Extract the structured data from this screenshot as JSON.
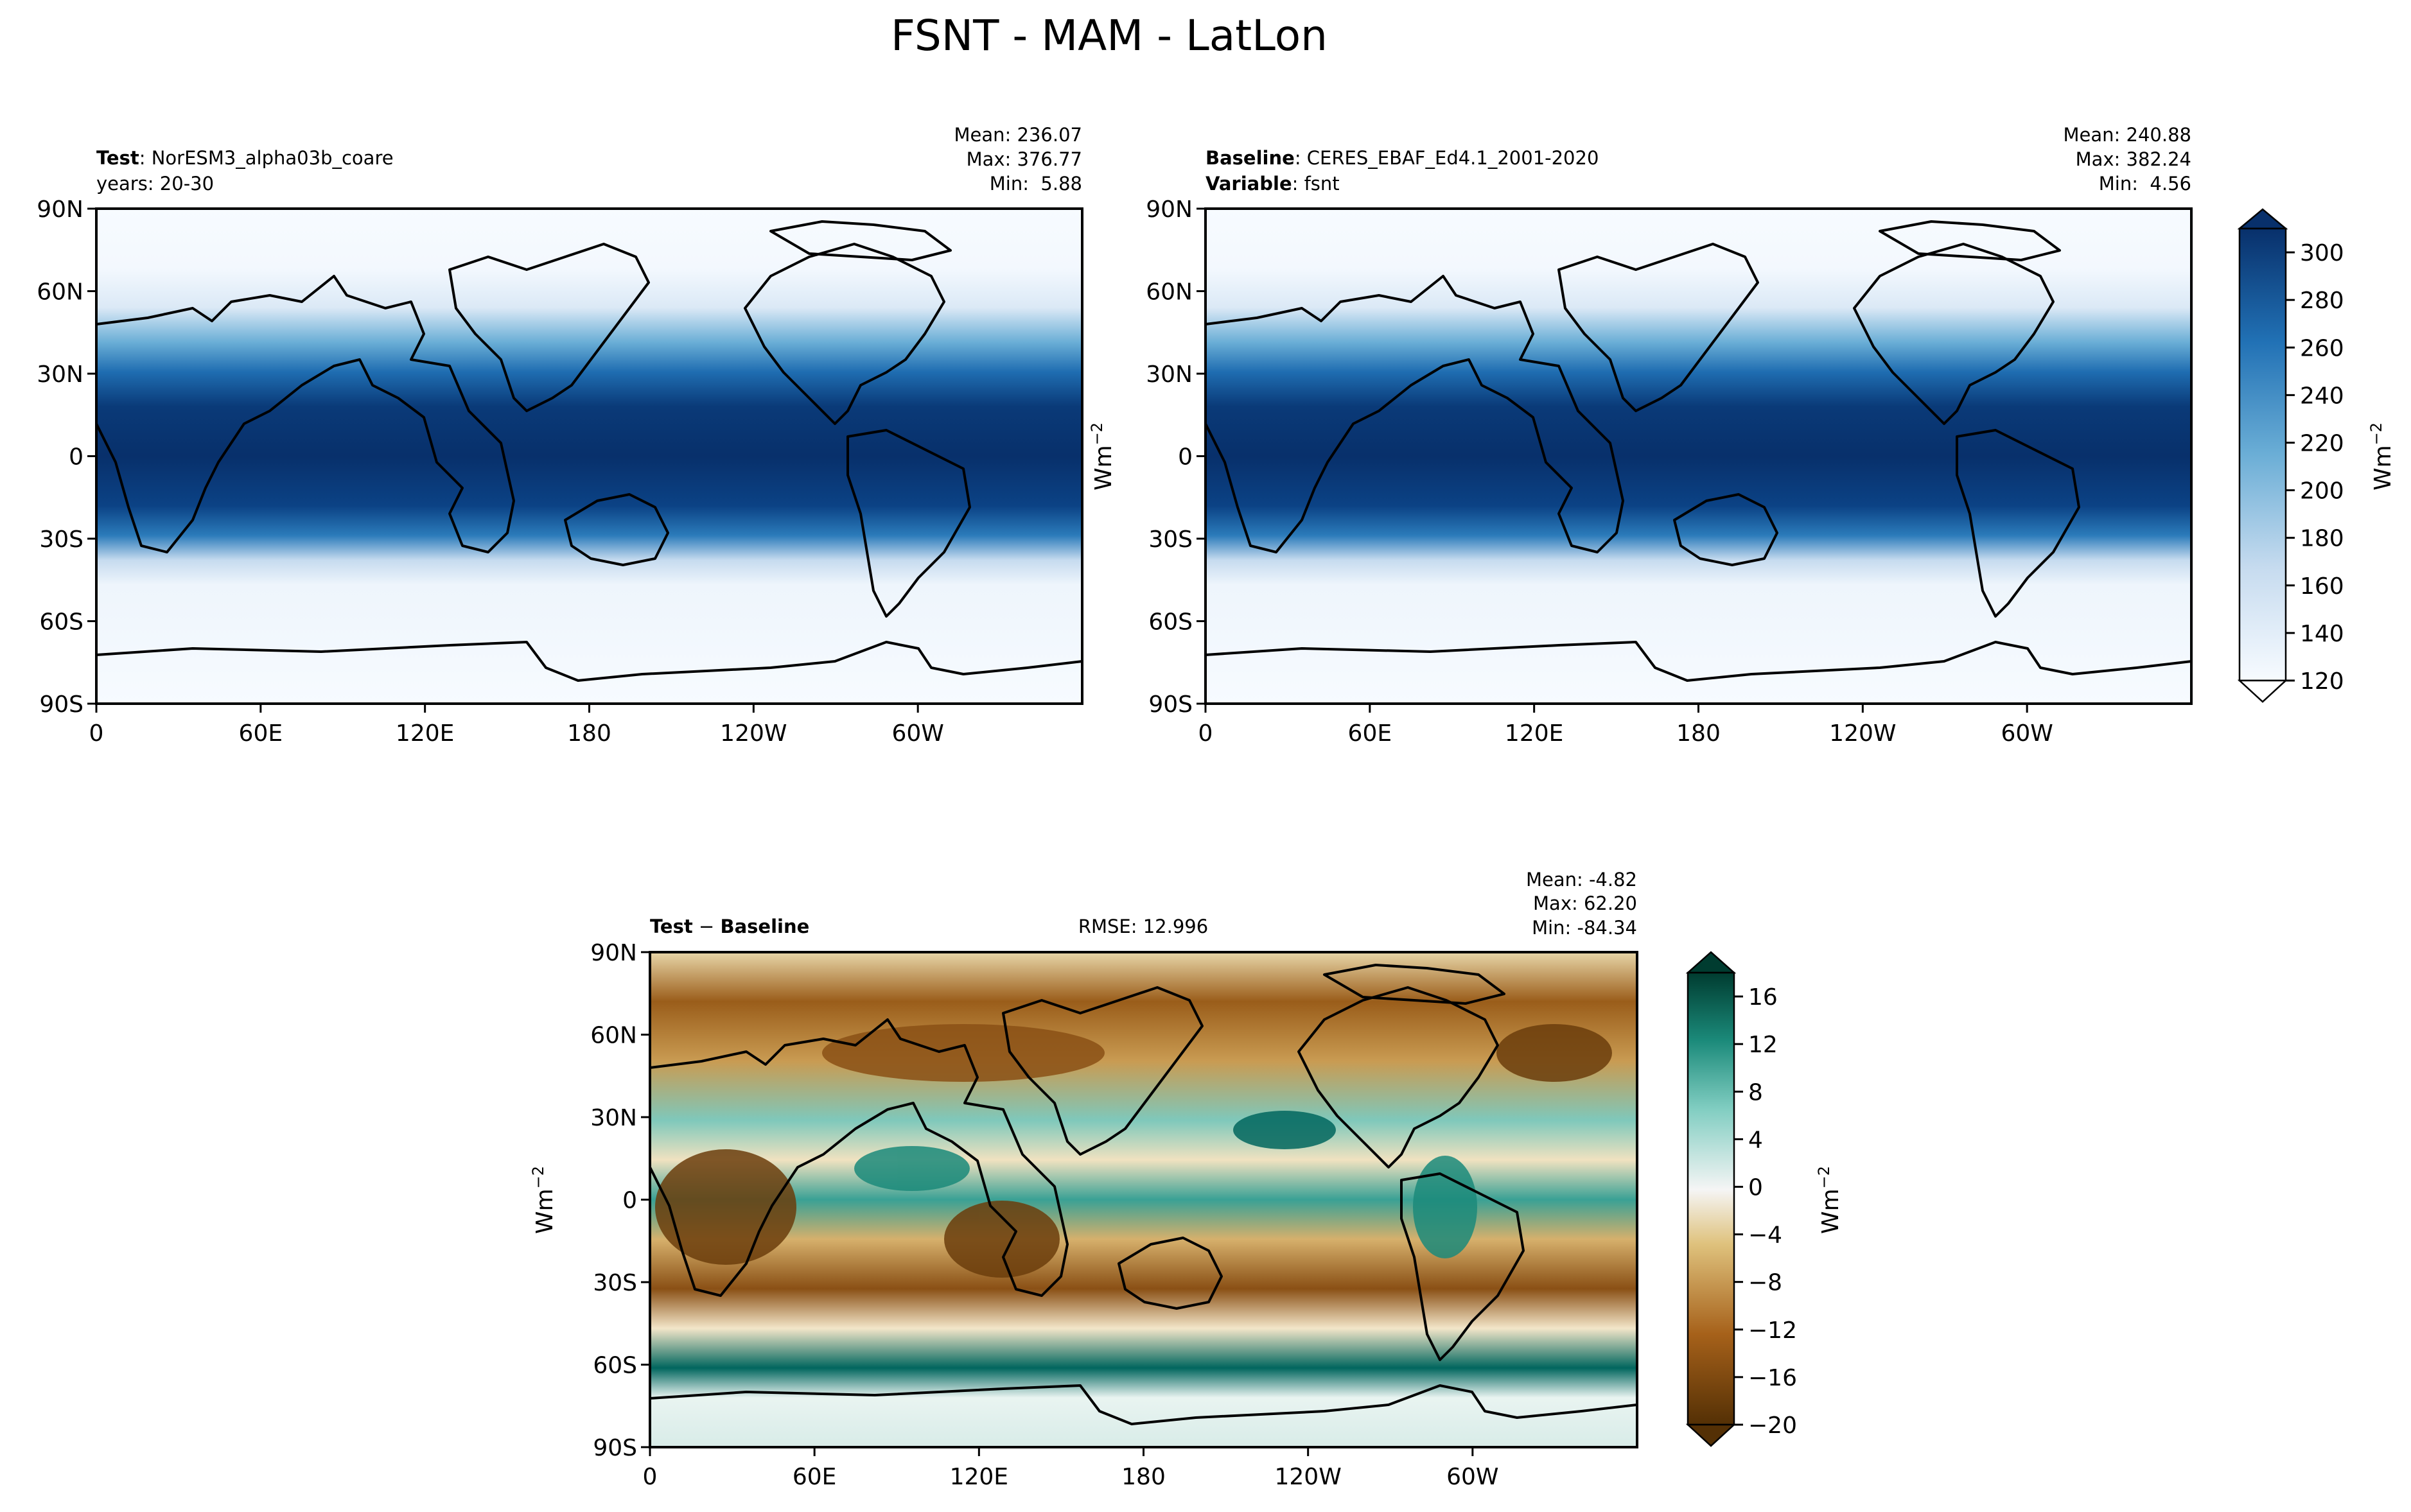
{
  "figure_title": "FSNT - MAM - LatLon",
  "chart_data": [
    {
      "type": "heatmap",
      "panel": "test",
      "header_left": [
        {
          "bold": "Test",
          "rest": ": NorESM3_alpha03b_coare"
        },
        {
          "bold": "",
          "rest": "years: 20-30"
        }
      ],
      "stats": [
        "Mean: 236.07",
        "Max: 376.77",
        "Min:  5.88"
      ],
      "xticks": [
        "0",
        "60E",
        "120E",
        "180",
        "120W",
        "60W"
      ],
      "yticks": [
        "90N",
        "60N",
        "30N",
        "0",
        "30S",
        "60S",
        "90S"
      ],
      "xlim": [
        0,
        360
      ],
      "ylim": [
        -90,
        90
      ],
      "colormap": "Blues",
      "colorbar": {
        "ticks": [
          "300",
          "280",
          "260",
          "240",
          "220",
          "200",
          "180",
          "160",
          "140",
          "120"
        ],
        "range": [
          120,
          310
        ],
        "extend": "both",
        "label": "Wm",
        "label_sup": "−2"
      }
    },
    {
      "type": "heatmap",
      "panel": "baseline",
      "header_left": [
        {
          "bold": "Baseline",
          "rest": ": CERES_EBAF_Ed4.1_2001-2020"
        },
        {
          "bold": "Variable",
          "rest": ": fsnt"
        }
      ],
      "stats": [
        "Mean: 240.88",
        "Max: 382.24",
        "Min:  4.56"
      ],
      "ylabel": "Wm",
      "ylabel_sup": "−2",
      "xticks": [
        "0",
        "60E",
        "120E",
        "180",
        "120W",
        "60W"
      ],
      "yticks": [
        "90N",
        "60N",
        "30N",
        "0",
        "30S",
        "60S",
        "90S"
      ],
      "xlim": [
        0,
        360
      ],
      "ylim": [
        -90,
        90
      ],
      "colormap": "Blues"
    },
    {
      "type": "heatmap",
      "panel": "difference",
      "header_left": [
        {
          "bold": "Test",
          "rest": " − ",
          "bold2": "Baseline"
        }
      ],
      "center_text": "RMSE: 12.996",
      "stats": [
        "Mean: -4.82",
        "Max: 62.20",
        "Min: -84.34"
      ],
      "ylabel": "Wm",
      "ylabel_sup": "−2",
      "xticks": [
        "0",
        "60E",
        "120E",
        "180",
        "120W",
        "60W"
      ],
      "yticks": [
        "90N",
        "60N",
        "30N",
        "0",
        "30S",
        "60S",
        "90S"
      ],
      "xlim": [
        0,
        360
      ],
      "ylim": [
        -90,
        90
      ],
      "colormap": "BrBG",
      "colorbar": {
        "ticks": [
          "16",
          "12",
          "8",
          "4",
          "0",
          "−4",
          "−8",
          "−12",
          "−16",
          "−20"
        ],
        "range": [
          -20,
          18
        ],
        "extend": "both",
        "label": "Wm",
        "label_sup": "−2"
      }
    }
  ]
}
